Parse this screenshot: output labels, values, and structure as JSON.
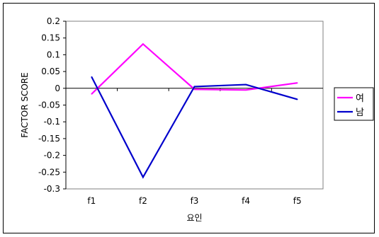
{
  "chart_data": {
    "type": "line",
    "categories": [
      "f1",
      "f2",
      "f3",
      "f4",
      "f5"
    ],
    "series": [
      {
        "name": "여",
        "color": "#ff00ff",
        "values": [
          -0.017,
          0.132,
          -0.003,
          -0.005,
          0.016
        ]
      },
      {
        "name": "남",
        "color": "#0000cc",
        "values": [
          0.034,
          -0.265,
          0.005,
          0.011,
          -0.033
        ]
      }
    ],
    "title": "",
    "xlabel": "요인",
    "ylabel": "FACTOR SCORE",
    "ylim": [
      -0.3,
      0.2
    ],
    "yticks": [
      0.2,
      0.15,
      0.1,
      0.05,
      0,
      -0.05,
      -0.1,
      -0.15,
      -0.2,
      -0.25,
      -0.3
    ],
    "ytick_labels": [
      "0.2",
      "0.15",
      "0.1",
      "0.05",
      "0",
      "-0.05",
      "-0.1",
      "-0.15",
      "-0.2",
      "-0.25",
      "-0.3"
    ],
    "grid": false,
    "legend_position": "right",
    "plot_background": "#ffffff"
  }
}
